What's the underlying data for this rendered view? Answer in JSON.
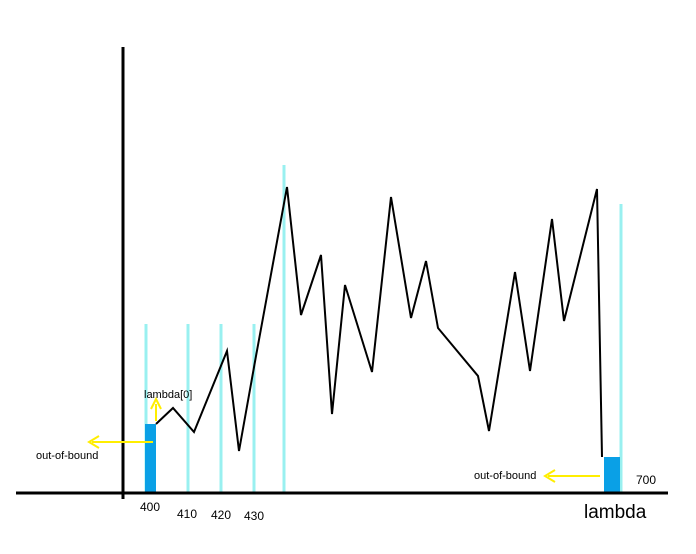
{
  "labels": {
    "lambda_zero": "lambda[0]",
    "out_left": "out-of-bound",
    "out_right": "out-of-bound",
    "axis_name": "lambda"
  },
  "tick_labels": [
    "400",
    "410",
    "420",
    "430",
    "700"
  ],
  "colors": {
    "axis": "#000000",
    "signal": "#000000",
    "sample_line": "#99f0f0",
    "bound_bar": "#0aa0e6",
    "arrow": "#ffee00"
  }
}
